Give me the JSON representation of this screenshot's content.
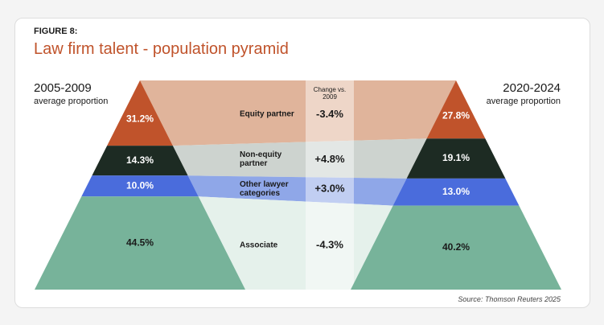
{
  "chart_data": {
    "type": "pyramid",
    "label": "FIGURE 8:",
    "title": "Law firm talent - population pyramid",
    "categories": [
      "Equity partner",
      "Non-equity partner",
      "Other lawyer categories",
      "Associate"
    ],
    "colors": [
      "#c0532b",
      "#1d2b23",
      "#4a6cdc",
      "#77b39a"
    ],
    "band_colors": [
      "#e0b49b",
      "#cdd3cf",
      "#8fa7e8",
      "#e5f1eb"
    ],
    "series": [
      {
        "name": "2005-2009",
        "subtitle": "average proportion",
        "values": [
          31.2,
          14.3,
          10.0,
          44.5
        ],
        "value_labels": [
          "31.2%",
          "14.3%",
          "10.0%",
          "44.5%"
        ]
      },
      {
        "name": "2020-2024",
        "subtitle": "average proportion",
        "values": [
          27.8,
          19.1,
          13.0,
          40.2
        ],
        "value_labels": [
          "27.8%",
          "19.1%",
          "13.0%",
          "40.2%"
        ]
      }
    ],
    "change": {
      "title": "Change vs. 2009",
      "values": [
        -3.4,
        4.8,
        3.0,
        -4.3
      ],
      "value_labels": [
        "-3.4%",
        "+4.8%",
        "+3.0%",
        "-4.3%"
      ]
    },
    "source": "Source: Thomson Reuters 2025"
  }
}
